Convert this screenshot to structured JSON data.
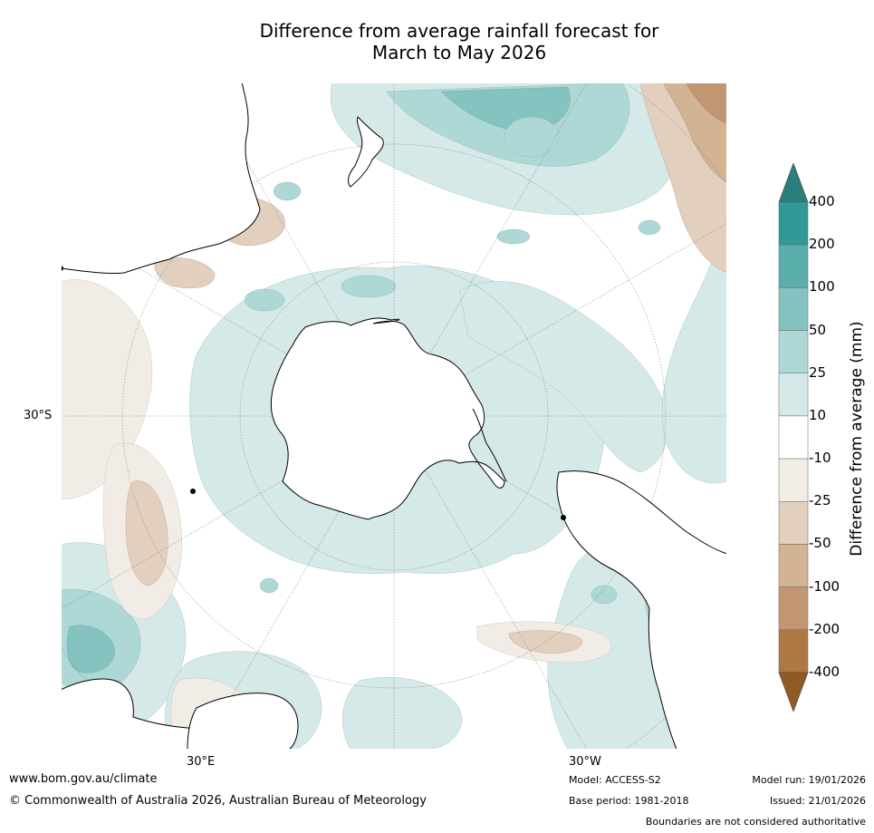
{
  "title": {
    "line1": "Difference from average rainfall forecast for",
    "line2": "March to May 2026"
  },
  "map": {
    "projection": "south-polar stereographic",
    "lat_label": "30°S",
    "lon_labels": [
      "30°E",
      "30°W"
    ]
  },
  "colorbar": {
    "title": "Difference from average (mm)",
    "labels": [
      "400",
      "200",
      "100",
      "50",
      "25",
      "10",
      "-10",
      "-25",
      "-50",
      "-100",
      "-200",
      "-400"
    ],
    "colors": {
      "top_arrow": "#2a7f7d",
      "bands": [
        "#2f9a97",
        "#5aaeab",
        "#85c3c1",
        "#aed8d6",
        "#d4e9e8",
        "#ffffff",
        "#f2ece6",
        "#e3cfbd",
        "#d2b394",
        "#c29670",
        "#ae7845"
      ],
      "bottom_arrow": "#8f5a24"
    }
  },
  "footer": {
    "website": "www.bom.gov.au/climate",
    "copyright": "© Commonwealth of Australia 2026, Australian Bureau of Meteorology",
    "model": "Model: ACCESS-S2",
    "base_period": "Base period: 1981-2018",
    "model_run": "Model run: 19/01/2026",
    "issued": "Issued: 21/01/2026",
    "disclaimer": "Boundaries are not considered authoritative"
  }
}
